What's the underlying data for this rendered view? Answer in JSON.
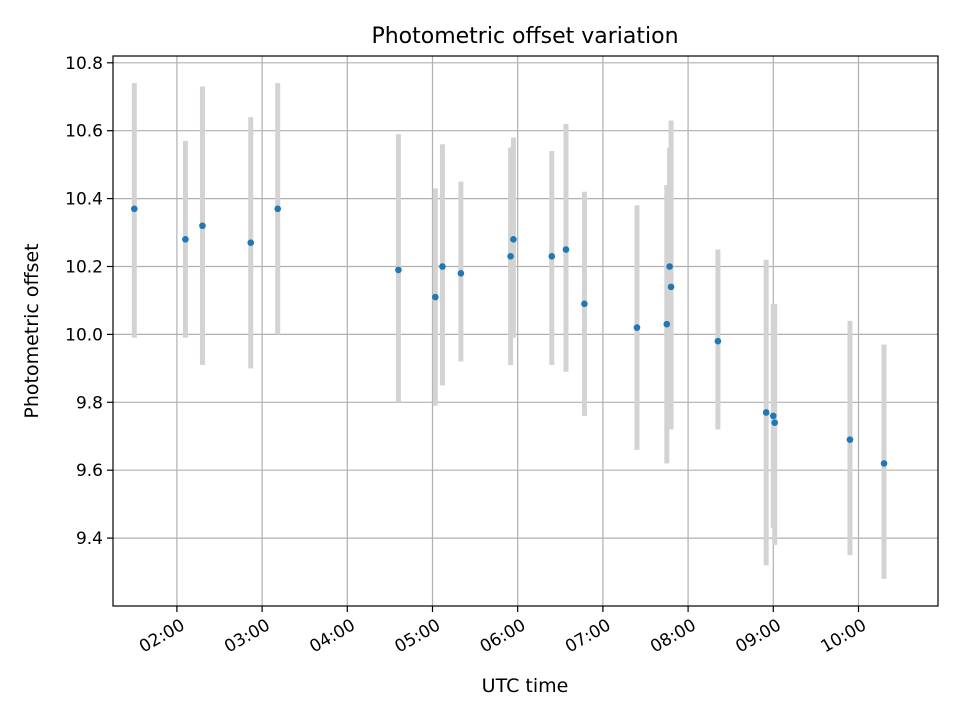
{
  "chart_data": {
    "type": "scatter",
    "title": "Photometric offset variation",
    "xlabel": "UTC time",
    "ylabel": "Photometric offset",
    "x_unit": "time of day",
    "xlim": [
      "01:15",
      "10:56"
    ],
    "ylim": [
      9.2,
      10.82
    ],
    "grid": true,
    "x_ticks": [
      "02:00",
      "03:00",
      "04:00",
      "05:00",
      "06:00",
      "07:00",
      "08:00",
      "09:00",
      "10:00"
    ],
    "y_ticks": [
      "9.4",
      "9.6",
      "9.8",
      "10.0",
      "10.2",
      "10.4",
      "10.6",
      "10.8"
    ],
    "marker_color": "#1f77b4",
    "errorbar_color": "#d3d3d3",
    "points": [
      {
        "x": "01:30",
        "y": 10.37,
        "ylow": 9.99,
        "yhigh": 10.74
      },
      {
        "x": "02:06",
        "y": 10.28,
        "ylow": 9.99,
        "yhigh": 10.57
      },
      {
        "x": "02:18",
        "y": 10.32,
        "ylow": 9.91,
        "yhigh": 10.73
      },
      {
        "x": "02:52",
        "y": 10.27,
        "ylow": 9.9,
        "yhigh": 10.64
      },
      {
        "x": "03:11",
        "y": 10.37,
        "ylow": 10.0,
        "yhigh": 10.74
      },
      {
        "x": "04:36",
        "y": 10.19,
        "ylow": 9.8,
        "yhigh": 10.59
      },
      {
        "x": "05:02",
        "y": 10.11,
        "ylow": 9.79,
        "yhigh": 10.43
      },
      {
        "x": "05:07",
        "y": 10.2,
        "ylow": 9.85,
        "yhigh": 10.56
      },
      {
        "x": "05:20",
        "y": 10.18,
        "ylow": 9.92,
        "yhigh": 10.45
      },
      {
        "x": "05:55",
        "y": 10.23,
        "ylow": 9.91,
        "yhigh": 10.55
      },
      {
        "x": "05:57",
        "y": 10.28,
        "ylow": 9.99,
        "yhigh": 10.58
      },
      {
        "x": "06:24",
        "y": 10.23,
        "ylow": 9.91,
        "yhigh": 10.54
      },
      {
        "x": "06:34",
        "y": 10.25,
        "ylow": 9.89,
        "yhigh": 10.62
      },
      {
        "x": "06:47",
        "y": 10.09,
        "ylow": 9.76,
        "yhigh": 10.42
      },
      {
        "x": "07:24",
        "y": 10.02,
        "ylow": 9.66,
        "yhigh": 10.38
      },
      {
        "x": "07:45",
        "y": 10.03,
        "ylow": 9.62,
        "yhigh": 10.44
      },
      {
        "x": "07:47",
        "y": 10.2,
        "ylow": 9.84,
        "yhigh": 10.55
      },
      {
        "x": "07:48",
        "y": 10.14,
        "ylow": 9.72,
        "yhigh": 10.63
      },
      {
        "x": "08:21",
        "y": 9.98,
        "ylow": 9.72,
        "yhigh": 10.25
      },
      {
        "x": "08:55",
        "y": 9.77,
        "ylow": 9.32,
        "yhigh": 10.22
      },
      {
        "x": "09:00",
        "y": 9.76,
        "ylow": 9.43,
        "yhigh": 10.09
      },
      {
        "x": "09:01",
        "y": 9.74,
        "ylow": 9.38,
        "yhigh": 10.09
      },
      {
        "x": "09:54",
        "y": 9.69,
        "ylow": 9.35,
        "yhigh": 10.04
      },
      {
        "x": "10:18",
        "y": 9.62,
        "ylow": 9.28,
        "yhigh": 9.97
      }
    ]
  }
}
